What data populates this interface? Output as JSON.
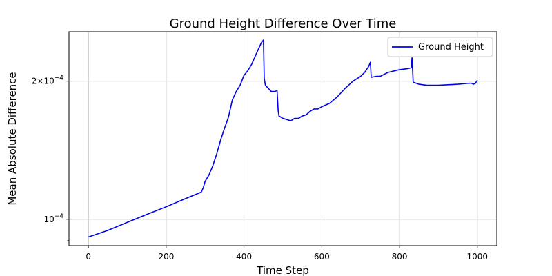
{
  "chart_data": {
    "type": "line",
    "title": "Ground Height Difference Over Time",
    "xlabel": "Time Step",
    "ylabel": "Mean Absolute Difference",
    "xlim": [
      -50,
      1050
    ],
    "ylim": [
      8.763e-05,
      0.0002564
    ],
    "y_scale": "log",
    "grid": true,
    "legend": {
      "placement": "top-right"
    },
    "x_ticks": [
      {
        "value": 0,
        "label": "0"
      },
      {
        "value": 200,
        "label": "200"
      },
      {
        "value": 400,
        "label": "400"
      },
      {
        "value": 600,
        "label": "600"
      },
      {
        "value": 800,
        "label": "800"
      },
      {
        "value": 1000,
        "label": "1000"
      }
    ],
    "y_major_ticks": [
      {
        "value": 0.0001,
        "base": "10",
        "exp": "−4"
      },
      {
        "value": 0.0002,
        "mult": "2×",
        "base": "10",
        "exp": "−4"
      }
    ],
    "y_minor_ticks": [
      9e-05
    ],
    "series": [
      {
        "name": "Ground Height",
        "color": "#0000ee",
        "x": [
          0,
          50,
          100,
          150,
          200,
          250,
          290,
          295,
          300,
          310,
          320,
          330,
          340,
          350,
          360,
          370,
          380,
          390,
          400,
          410,
          420,
          430,
          440,
          445,
          450,
          452,
          455,
          460,
          465,
          470,
          475,
          480,
          485,
          488,
          490,
          500,
          510,
          520,
          530,
          540,
          550,
          560,
          570,
          580,
          590,
          600,
          620,
          640,
          660,
          680,
          700,
          710,
          720,
          725,
          727,
          740,
          750,
          760,
          770,
          780,
          800,
          820,
          830,
          832,
          835,
          850,
          870,
          900,
          950,
          980,
          985,
          990,
          995,
          1000
        ],
        "y": [
          9.15e-05,
          9.46e-05,
          9.85e-05,
          0.0001025,
          0.0001065,
          0.000111,
          0.0001146,
          0.000117,
          0.000121,
          0.000125,
          0.000131,
          0.000139,
          0.000149,
          0.000158,
          0.000167,
          0.000182,
          0.00019,
          0.000196,
          0.000206,
          0.000211,
          0.000218,
          0.000228,
          0.000238,
          0.000243,
          0.000246,
          0.000203,
          0.000196,
          0.000194,
          0.000192,
          0.00019,
          0.00019,
          0.00019,
          0.000191,
          0.000172,
          0.000168,
          0.000166,
          0.000165,
          0.000164,
          0.000166,
          0.000166,
          0.000168,
          0.000169,
          0.000172,
          0.000174,
          0.000174,
          0.000176,
          0.000179,
          0.000185,
          0.000193,
          0.0002,
          0.000205,
          0.000209,
          0.000215,
          0.00022,
          0.000204,
          0.000205,
          0.000205,
          0.000207,
          0.000209,
          0.00021,
          0.000212,
          0.000213,
          0.000214,
          0.000225,
          0.000199,
          0.000197,
          0.000196,
          0.000196,
          0.000197,
          0.000198,
          0.000198,
          0.000197,
          0.000198,
          0.000201
        ]
      }
    ]
  }
}
